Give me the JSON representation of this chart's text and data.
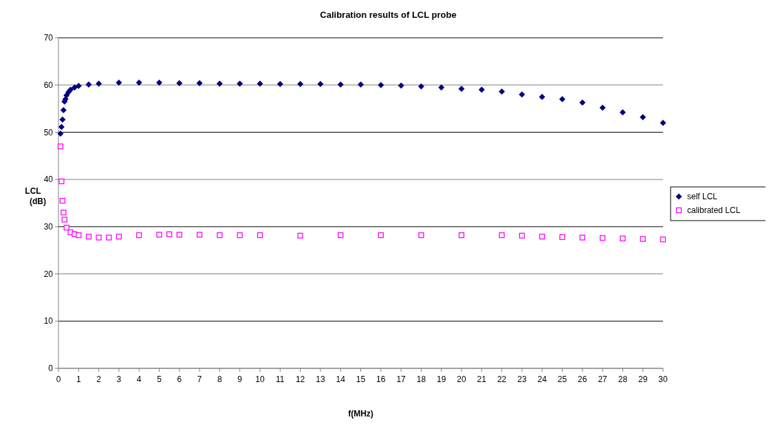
{
  "chart_data": {
    "type": "scatter",
    "title": "Calibration results of LCL probe",
    "xlabel": "f(MHz)",
    "ylabel": "LCL (dB)",
    "xlim": [
      0,
      30
    ],
    "xticks": [
      0,
      1,
      2,
      3,
      4,
      5,
      6,
      7,
      8,
      9,
      10,
      11,
      12,
      13,
      14,
      15,
      16,
      17,
      18,
      19,
      20,
      21,
      22,
      23,
      24,
      25,
      26,
      27,
      28,
      29,
      30
    ],
    "ylim": [
      0,
      70
    ],
    "yticks": [
      0,
      10,
      20,
      30,
      40,
      50,
      60,
      70
    ],
    "grid": "y",
    "legend": "right",
    "series": [
      {
        "name": "self LCL",
        "color": "#000080",
        "marker": "diamond",
        "x": [
          0.1,
          0.15,
          0.2,
          0.25,
          0.3,
          0.35,
          0.4,
          0.5,
          0.6,
          0.8,
          1,
          1.5,
          2,
          3,
          4,
          5,
          6,
          7,
          8,
          9,
          10,
          11,
          12,
          13,
          14,
          15,
          16,
          17,
          18,
          19,
          20,
          21,
          22,
          23,
          24,
          25,
          26,
          27,
          28,
          29,
          30
        ],
        "values": [
          49.7,
          51.1,
          52.7,
          54.7,
          56.5,
          57,
          57.8,
          58.5,
          59,
          59.5,
          59.8,
          60.1,
          60.3,
          60.5,
          60.5,
          60.5,
          60.4,
          60.4,
          60.3,
          60.3,
          60.3,
          60.2,
          60.2,
          60.2,
          60.1,
          60.1,
          60,
          59.9,
          59.7,
          59.5,
          59.2,
          59,
          58.6,
          58,
          57.5,
          57,
          56.3,
          55.2,
          54.2,
          53.2,
          52
        ]
      },
      {
        "name": "calibrated LCL",
        "color": "#ff00ff",
        "marker": "square",
        "x": [
          0.1,
          0.15,
          0.2,
          0.25,
          0.3,
          0.4,
          0.6,
          0.8,
          1,
          1.5,
          2,
          2.5,
          3,
          4,
          5,
          5.5,
          6,
          7,
          8,
          9,
          10,
          12,
          14,
          16,
          18,
          20,
          22,
          23,
          24,
          25,
          26,
          27,
          28,
          29,
          30
        ],
        "values": [
          47,
          39.6,
          35.5,
          33,
          31.5,
          29.8,
          28.8,
          28.4,
          28.2,
          27.9,
          27.7,
          27.7,
          27.9,
          28.2,
          28.3,
          28.4,
          28.3,
          28.3,
          28.2,
          28.2,
          28.2,
          28.1,
          28.2,
          28.2,
          28.2,
          28.2,
          28.2,
          28.1,
          27.9,
          27.8,
          27.7,
          27.6,
          27.5,
          27.4,
          27.3
        ]
      }
    ]
  }
}
